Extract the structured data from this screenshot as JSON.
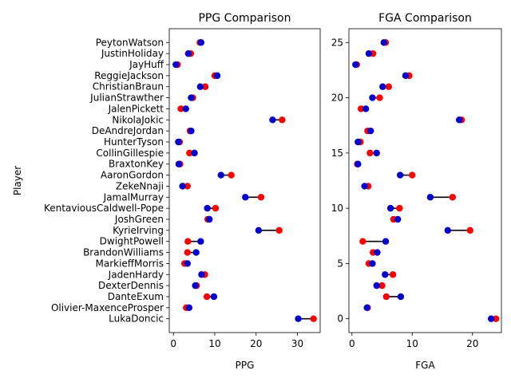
{
  "chart_data": [
    {
      "type": "dumbbell",
      "title": "PPG Comparison",
      "xlabel": "PPG",
      "ylabel": "Player",
      "xlim": [
        -1,
        35.5
      ],
      "xticks": [
        0,
        10,
        20,
        30
      ],
      "categories": [
        "PeytonWatson",
        "JustinHoliday",
        "JayHuff",
        "ReggieJackson",
        "ChristianBraun",
        "JulianStrawther",
        "JalenPickett",
        "NikolaJokic",
        "DeAndreJordan",
        "HunterTyson",
        "CollinGillespie",
        "BraxtonKey",
        "AaronGordon",
        "ZekeNnaji",
        "JamalMurray",
        "KentaviousCaldwell-Pope",
        "JoshGreen",
        "KyrieIrving",
        "DwightPowell",
        "BrandonWilliams",
        "MarkieffMorris",
        "JadenHardy",
        "DexterDennis",
        "DanteExum",
        "Olivier-MaxenceProsper",
        "LukaDoncic"
      ],
      "series": [
        {
          "color": "#ff0000",
          "values": [
            6.4,
            4.2,
            1.0,
            10.0,
            7.7,
            4.7,
            1.8,
            26.3,
            4.0,
            1.5,
            3.9,
            1.6,
            14.0,
            3.4,
            21.2,
            10.2,
            8.3,
            25.6,
            3.5,
            3.4,
            2.7,
            7.6,
            5.6,
            8.1,
            3.1,
            33.9
          ]
        },
        {
          "color": "#0000cc",
          "values": [
            6.7,
            3.6,
            0.6,
            10.6,
            6.5,
            4.3,
            3.0,
            24.0,
            4.3,
            1.2,
            5.1,
            1.3,
            11.5,
            2.2,
            17.4,
            8.2,
            8.7,
            20.6,
            6.6,
            5.5,
            3.4,
            6.8,
            5.3,
            9.8,
            3.8,
            30.2
          ]
        }
      ]
    },
    {
      "type": "dumbbell",
      "title": "FGA Comparison",
      "xlabel": "FGA",
      "ylabel": "",
      "xlim": [
        -0.5,
        24.8
      ],
      "xticks": [
        0,
        10,
        20
      ],
      "yticks": [
        0,
        5,
        10,
        15,
        20,
        25
      ],
      "y": [
        25,
        24,
        23,
        22,
        21,
        20,
        19,
        18,
        17,
        16,
        15,
        14,
        13,
        12,
        11,
        10,
        9,
        8,
        7,
        6,
        5,
        4,
        3,
        2,
        1,
        0
      ],
      "series": [
        {
          "color": "#ff0000",
          "values": [
            5.6,
            3.5,
            0.8,
            9.5,
            6.1,
            4.6,
            1.5,
            18.2,
            2.6,
            1.4,
            3.0,
            0.9,
            10.0,
            2.7,
            16.7,
            7.9,
            6.9,
            19.6,
            1.8,
            3.5,
            2.8,
            6.8,
            5.0,
            5.7,
            2.6,
            23.9
          ]
        },
        {
          "color": "#0000cc",
          "values": [
            5.3,
            2.8,
            0.6,
            8.9,
            5.1,
            3.4,
            2.3,
            17.8,
            3.1,
            1.0,
            4.1,
            1.0,
            8.0,
            2.1,
            13.0,
            6.4,
            7.6,
            15.9,
            5.6,
            4.2,
            3.4,
            5.5,
            4.1,
            8.1,
            2.5,
            23.1
          ]
        }
      ]
    }
  ]
}
